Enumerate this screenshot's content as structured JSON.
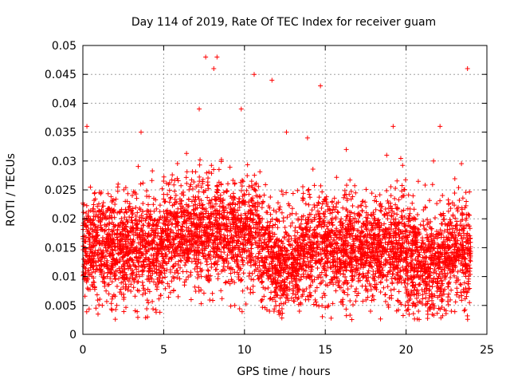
{
  "chart_data": {
    "type": "scatter",
    "title": "Day 114 of 2019, Rate Of TEC Index for receiver guam",
    "xlabel": "GPS time / hours",
    "ylabel": "ROTI / TECUs",
    "xlim": [
      0,
      25
    ],
    "ylim": [
      0,
      0.05
    ],
    "x_ticks": [
      0,
      5,
      10,
      15,
      20,
      25
    ],
    "x_tick_labels": [
      "0",
      "5",
      "10",
      "15",
      "20",
      "25"
    ],
    "y_ticks": [
      0,
      0.005,
      0.01,
      0.015,
      0.02,
      0.025,
      0.03,
      0.035,
      0.04,
      0.045,
      0.05
    ],
    "y_tick_labels": [
      "0",
      "0.005",
      "0.01",
      "0.015",
      "0.02",
      "0.025",
      "0.03",
      "0.035",
      "0.04",
      "0.045",
      "0.05"
    ],
    "grid": true,
    "marker": "+",
    "series": [
      {
        "name": "guam",
        "color": "#ff0000",
        "x": [
          0.05,
          0.2,
          0.3,
          0.5,
          0.7,
          0.9,
          1.1,
          1.3,
          1.5,
          1.7,
          1.9,
          2.1,
          2.3,
          2.5,
          2.7,
          2.9,
          3.1,
          3.3,
          3.5,
          3.7,
          3.9,
          4.1,
          4.3,
          4.5,
          4.7,
          4.9,
          5.1,
          5.3,
          5.5,
          5.7,
          5.9,
          6.1,
          6.3,
          6.5,
          6.7,
          6.9,
          7.1,
          7.3,
          7.5,
          7.7,
          7.9,
          8.1,
          8.3,
          8.5,
          8.7,
          8.9,
          9.1,
          9.3,
          9.5,
          9.7,
          9.9,
          10.1,
          10.3,
          10.5,
          10.7,
          10.9,
          11.1,
          11.3,
          11.5,
          11.7,
          11.9,
          12.1,
          12.3,
          12.5,
          12.7,
          12.9,
          13.1,
          13.3,
          13.5,
          13.7,
          13.9,
          14.1,
          14.3,
          14.5,
          14.7,
          14.9,
          15.1,
          15.3,
          15.5,
          15.7,
          15.9,
          16.1,
          16.3,
          16.5,
          16.7,
          16.9,
          17.1,
          17.3,
          17.5,
          17.7,
          17.9,
          18.1,
          18.3,
          18.5,
          18.7,
          18.9,
          19.1,
          19.3,
          19.5,
          19.7,
          19.9,
          20.1,
          20.3,
          20.5,
          20.7,
          20.9,
          21.1,
          21.3,
          21.5,
          21.7,
          21.9,
          22.1,
          22.3,
          22.5,
          22.7,
          22.9,
          23.1,
          23.3,
          23.5,
          23.7,
          23.9,
          0.25,
          7.6,
          8.1,
          8.3,
          10.6,
          11.7,
          14.7,
          23.8,
          7.2,
          9.8,
          3.6,
          22.1,
          19.2,
          12.6,
          13.9,
          16.3,
          18.8,
          21.7,
          4.0,
          2.1,
          6.7,
          15.2,
          17.8,
          20.4,
          22.8,
          1.2,
          11.1,
          13.4,
          9.4
        ],
        "y": [
          0.013,
          0.021,
          0.011,
          0.015,
          0.009,
          0.018,
          0.012,
          0.016,
          0.01,
          0.014,
          0.019,
          0.013,
          0.011,
          0.017,
          0.015,
          0.012,
          0.016,
          0.014,
          0.01,
          0.018,
          0.013,
          0.011,
          0.015,
          0.017,
          0.014,
          0.016,
          0.019,
          0.015,
          0.013,
          0.017,
          0.018,
          0.016,
          0.014,
          0.02,
          0.017,
          0.019,
          0.015,
          0.021,
          0.018,
          0.016,
          0.022,
          0.019,
          0.017,
          0.023,
          0.02,
          0.018,
          0.021,
          0.019,
          0.017,
          0.022,
          0.018,
          0.02,
          0.016,
          0.021,
          0.019,
          0.017,
          0.02,
          0.018,
          0.016,
          0.015,
          0.019,
          0.011,
          0.009,
          0.012,
          0.01,
          0.014,
          0.013,
          0.015,
          0.012,
          0.017,
          0.014,
          0.016,
          0.018,
          0.015,
          0.02,
          0.017,
          0.014,
          0.016,
          0.012,
          0.015,
          0.013,
          0.016,
          0.014,
          0.012,
          0.017,
          0.015,
          0.013,
          0.016,
          0.014,
          0.012,
          0.015,
          0.013,
          0.017,
          0.015,
          0.012,
          0.016,
          0.019,
          0.014,
          0.012,
          0.015,
          0.013,
          0.011,
          0.014,
          0.012,
          0.015,
          0.01,
          0.012,
          0.011,
          0.013,
          0.009,
          0.012,
          0.014,
          0.016,
          0.013,
          0.015,
          0.017,
          0.014,
          0.018,
          0.016,
          0.015,
          0.012,
          0.036,
          0.048,
          0.046,
          0.048,
          0.045,
          0.044,
          0.043,
          0.046,
          0.039,
          0.039,
          0.035,
          0.036,
          0.036,
          0.035,
          0.034,
          0.032,
          0.031,
          0.03,
          0.003,
          0.005,
          0.006,
          0.005,
          0.004,
          0.005,
          0.004,
          0.005,
          0.006,
          0.004,
          0.005
        ],
        "noise_cloud": {
          "x_range": [
            0,
            24
          ],
          "y_band_low": 0.005,
          "y_band_high": 0.03,
          "count_estimate": 5000
        }
      }
    ]
  }
}
